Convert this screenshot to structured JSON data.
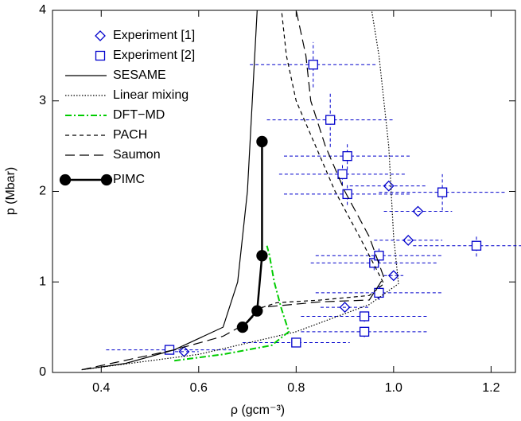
{
  "chart_data": {
    "type": "line",
    "xlabel": "ρ (gcm⁻³)",
    "ylabel": "p (Mbar)",
    "xlim": [
      0.3,
      1.25
    ],
    "ylim": [
      0,
      4
    ],
    "xticks": [
      0.4,
      0.6,
      0.8,
      {
        "value": 1.0,
        "label": "1.0"
      },
      1.2
    ],
    "yticks": [
      0,
      1,
      2,
      3,
      4
    ],
    "legend": "upper left",
    "series": [
      {
        "name": "Experiment [1]",
        "color": "#0000cc",
        "style": "none",
        "marker": "diamond",
        "x": [
          0.57,
          0.9,
          1.0,
          1.03,
          1.05,
          0.99
        ],
        "values": [
          0.23,
          0.72,
          1.07,
          1.46,
          1.78,
          2.06
        ],
        "xerr": [
          0.03,
          0.05,
          0.02,
          0.07,
          0.07,
          0.08
        ]
      },
      {
        "name": "Experiment [2]",
        "color": "#0000cc",
        "style": "none",
        "marker": "square",
        "x": [
          0.54,
          0.8,
          0.94,
          0.94,
          0.97,
          0.96,
          0.97,
          1.17,
          0.905,
          1.1,
          0.895,
          0.905,
          0.87,
          0.835
        ],
        "values": [
          0.25,
          0.33,
          0.45,
          0.62,
          0.88,
          1.21,
          1.29,
          1.4,
          1.97,
          1.99,
          2.19,
          2.39,
          2.79,
          3.4
        ],
        "xerr": [
          0.13,
          0.11,
          0.13,
          0.13,
          0.13,
          0.13,
          0.13,
          0.13,
          0.13,
          0.13,
          0.13,
          0.13,
          0.13,
          0.13
        ],
        "yerr": [
          0.04,
          0.04,
          0.06,
          0.06,
          0.08,
          0.08,
          0.08,
          0.12,
          0.12,
          0.2,
          0.12,
          0.15,
          0.3,
          0.25
        ]
      },
      {
        "name": "SESAME",
        "color": "#000000",
        "style": "solid",
        "marker": "none",
        "x": [
          0.36,
          0.45,
          0.55,
          0.65,
          0.68,
          0.7,
          0.71,
          0.72
        ],
        "values": [
          0.03,
          0.1,
          0.25,
          0.5,
          1.0,
          2.0,
          3.0,
          4.0
        ]
      },
      {
        "name": "Linear mixing",
        "color": "#000000",
        "style": "dotted",
        "marker": "none",
        "x": [
          0.36,
          0.6,
          0.8,
          0.95,
          1.01,
          1.0,
          0.99,
          0.97,
          0.955
        ],
        "values": [
          0.03,
          0.2,
          0.45,
          0.75,
          0.98,
          1.5,
          2.5,
          3.5,
          4.0
        ]
      },
      {
        "name": "DFT−MD",
        "color": "#00cc00",
        "style": "dashdot",
        "marker": "none",
        "x": [
          0.55,
          0.65,
          0.75,
          0.785,
          0.77,
          0.755,
          0.745,
          0.74
        ],
        "values": [
          0.13,
          0.2,
          0.3,
          0.45,
          0.7,
          1.0,
          1.3,
          1.4
        ]
      },
      {
        "name": "PACH",
        "color": "#000000",
        "style": "dashed",
        "marker": "none",
        "x": [
          0.7,
          0.72,
          0.76,
          0.85,
          0.95,
          0.98,
          0.93,
          0.88,
          0.84,
          0.8,
          0.78,
          0.77
        ],
        "values": [
          0.55,
          0.7,
          0.77,
          0.8,
          0.85,
          0.98,
          1.5,
          2.0,
          2.5,
          3.0,
          3.5,
          4.0
        ]
      },
      {
        "name": "Saumon",
        "color": "#000000",
        "style": "longdash",
        "marker": "none",
        "x": [
          0.36,
          0.55,
          0.65,
          0.7,
          0.73,
          0.85,
          0.95,
          0.98,
          0.95,
          0.9,
          0.86,
          0.83,
          0.82,
          0.8
        ],
        "values": [
          0.03,
          0.25,
          0.4,
          0.55,
          0.72,
          0.78,
          0.8,
          1.05,
          1.5,
          2.0,
          2.5,
          3.0,
          3.5,
          4.0
        ]
      },
      {
        "name": "PIMC",
        "color": "#000000",
        "style": "thick",
        "marker": "circle",
        "x": [
          0.69,
          0.72,
          0.73,
          0.73
        ],
        "values": [
          0.5,
          0.68,
          1.29,
          2.55
        ],
        "xerr": [
          0.01,
          0.01,
          0.01,
          0.01
        ]
      }
    ]
  }
}
